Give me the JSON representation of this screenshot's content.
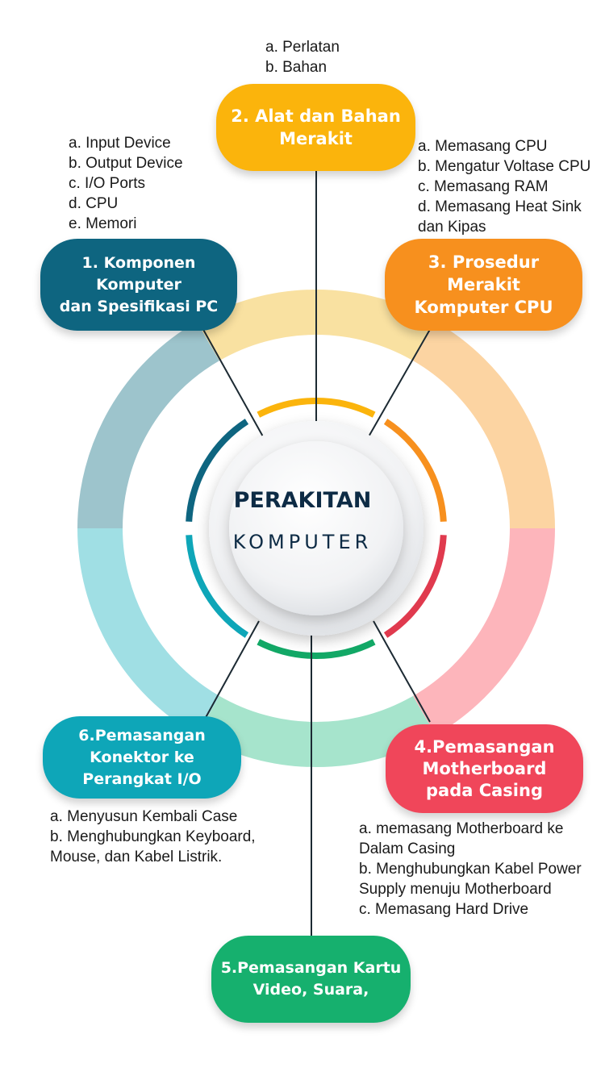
{
  "center": {
    "title": "PERAKITAN",
    "subtitle": "KOMPUTER"
  },
  "steps": [
    {
      "label": "1. Komponen\nKomputer\ndan Spesifikasi PC",
      "color": "#0e6580",
      "items": [
        "a. Input Device",
        "b. Output Device",
        "c. I/O Ports",
        "d. CPU",
        "e. Memori"
      ]
    },
    {
      "label": "2. Alat dan Bahan\nMerakit",
      "color": "#fbb40c",
      "items": [
        "a. Perlatan",
        "b. Bahan"
      ]
    },
    {
      "label": "3. Prosedur\nMerakit\nKomputer CPU",
      "color": "#f7901e",
      "items": [
        "a. Memasang CPU",
        "b. Mengatur Voltase CPU",
        "c. Memasang RAM",
        "d. Memasang Heat Sink\n    dan Kipas"
      ]
    },
    {
      "label": "4.Pemasangan\nMotherboard\npada Casing",
      "color": "#f0465a",
      "items": [
        "a. memasang Motherboard ke\n    Dalam Casing",
        "b. Menghubungkan Kabel Power\n     Supply menuju Motherboard",
        "c. Memasang Hard Drive"
      ]
    },
    {
      "label": "5.Pemasangan Kartu\nVideo, Suara,",
      "color": "#16b06e",
      "items": []
    },
    {
      "label": "6.Pemasangan\nKonektor ke\nPerangkat I/O",
      "color": "#0ea6b8",
      "items": [
        "a. Menyusun Kembali Case",
        "b. Menghubungkan Keyboard,\n    Mouse, dan Kabel Listrik."
      ]
    }
  ],
  "ring_colors": {
    "outer": [
      "#9dc4cc",
      "#f9e1a1",
      "#fcd4a2",
      "#fdb5bb",
      "#a6e4cc",
      "#a0dfe4"
    ],
    "inner": [
      "#0e6580",
      "#fbb40c",
      "#f7901e",
      "#e03a4e",
      "#12a866",
      "#0ea6b8"
    ]
  }
}
